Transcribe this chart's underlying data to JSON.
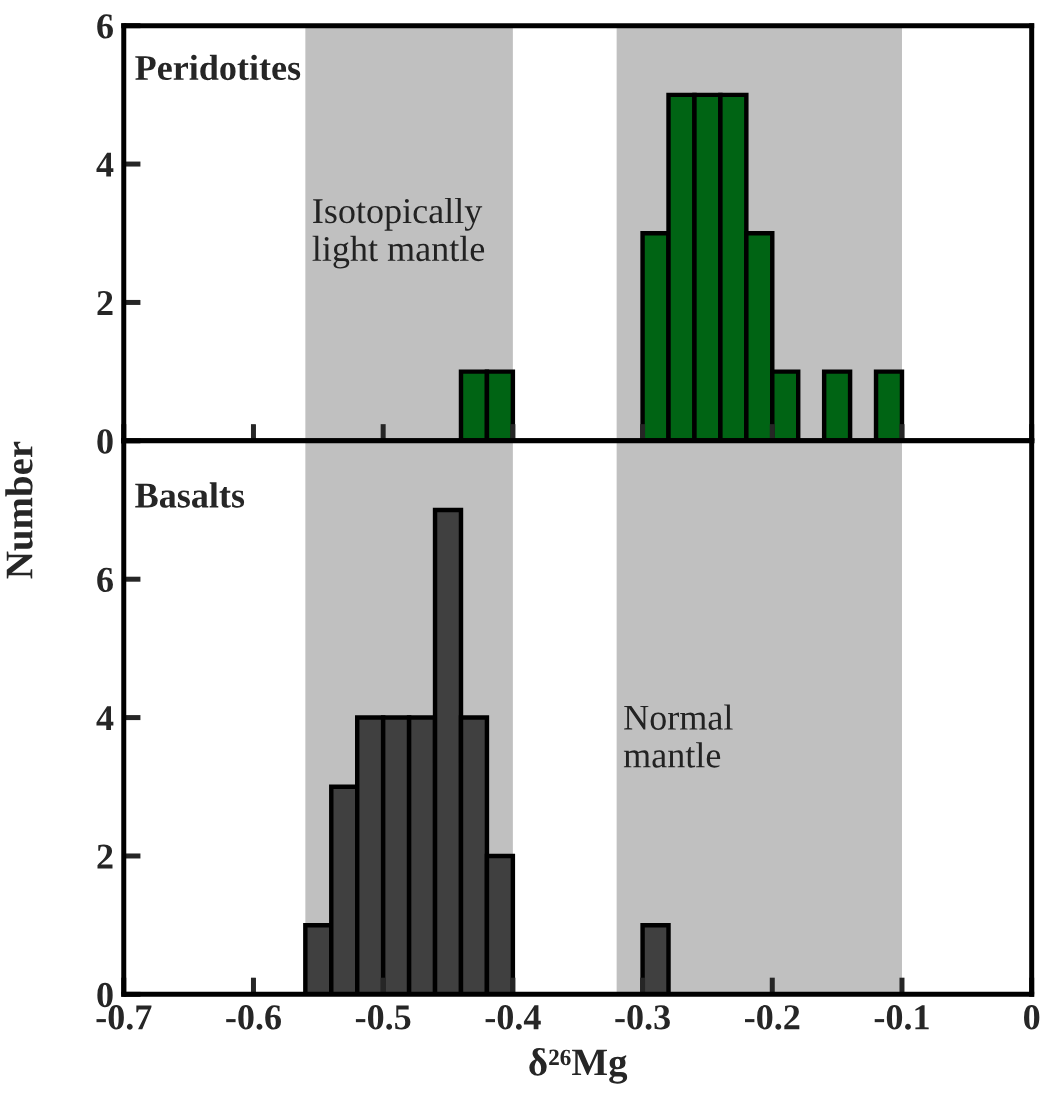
{
  "chart_data": [
    {
      "type": "histogram",
      "xlabel": null,
      "ylabel": "Number",
      "bins": [
        -0.44,
        -0.42,
        -0.4,
        -0.38,
        -0.36,
        -0.34,
        -0.32,
        -0.3,
        -0.28,
        -0.26,
        -0.24,
        -0.22,
        -0.2,
        -0.18,
        -0.16,
        -0.14,
        -0.12,
        -0.1
      ],
      "values": [
        1,
        1,
        0,
        0,
        0,
        0,
        0,
        3,
        5,
        5,
        5,
        3,
        1,
        0,
        1,
        0,
        1
      ],
      "color": "#006414",
      "xlim": [
        -0.7,
        0
      ],
      "xticks": [
        {
          "value": -0.7,
          "label": null
        },
        {
          "value": -0.6,
          "label": null
        },
        {
          "value": -0.5,
          "label": null
        },
        {
          "value": -0.4,
          "label": null
        },
        {
          "value": -0.3,
          "label": null
        },
        {
          "value": -0.2,
          "label": null
        },
        {
          "value": -0.1,
          "label": null
        },
        {
          "value": 0,
          "label": null
        }
      ],
      "ylim": [
        0,
        6
      ],
      "yticks": [
        0,
        2,
        4,
        6
      ],
      "tick_labels": "y",
      "bands": [
        {
          "axis": "x",
          "from": -0.56,
          "to": -0.4,
          "color": "#c0c0c0"
        },
        {
          "axis": "x",
          "from": -0.32,
          "to": -0.1,
          "color": "#c0c0c0"
        }
      ],
      "annotations": [
        "Peridotites",
        "Isotopically\nlight mantle"
      ]
    },
    {
      "type": "histogram",
      "xlabel": "δ²⁶Mg",
      "bins": [
        -0.56,
        -0.54,
        -0.52,
        -0.5,
        -0.48,
        -0.46,
        -0.44,
        -0.42,
        -0.4,
        -0.38,
        -0.36,
        -0.34,
        -0.32,
        -0.3,
        -0.28
      ],
      "values": [
        1,
        3,
        4,
        4,
        4,
        7,
        4,
        2,
        0,
        0,
        0,
        0,
        0,
        1
      ],
      "color": "#404040",
      "xlim": [
        -0.7,
        0
      ],
      "xticks": [
        -0.7,
        -0.6,
        -0.5,
        -0.4,
        -0.3,
        -0.2,
        -0.1,
        0
      ],
      "ylim": [
        0,
        8
      ],
      "yticks": [
        0,
        2,
        4,
        6,
        {
          "value": 8,
          "label": null
        }
      ],
      "bands": [
        {
          "axis": "x",
          "from": -0.56,
          "to": -0.4,
          "color": "#c0c0c0"
        },
        {
          "axis": "x",
          "from": -0.32,
          "to": -0.1,
          "color": "#c0c0c0"
        }
      ],
      "annotations": [
        "Basalts",
        "Normal\nmantle"
      ]
    }
  ]
}
